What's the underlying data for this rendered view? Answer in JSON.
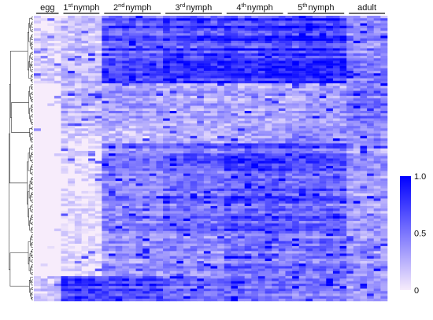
{
  "chart_data": {
    "type": "heatmap",
    "title": "",
    "xlabel": "",
    "ylabel": "",
    "row_count": 114,
    "value_range": [
      0,
      1
    ],
    "colorscale": {
      "low": "#f7ecfb",
      "high": "#0000ff"
    },
    "groups": [
      {
        "id": "egg",
        "base": "egg",
        "sup": "",
        "rest": "",
        "columns": 4
      },
      {
        "id": "n1",
        "base": "1",
        "sup": "st",
        "rest": "nymph",
        "columns": 6
      },
      {
        "id": "n2",
        "base": "2",
        "sup": "nd",
        "rest": "nymph",
        "columns": 9
      },
      {
        "id": "n3",
        "base": "3",
        "sup": "rd",
        "rest": "nymph",
        "columns": 9
      },
      {
        "id": "n4",
        "base": "4",
        "sup": "th",
        "rest": "nymph",
        "columns": 9
      },
      {
        "id": "n5",
        "base": "5",
        "sup": "th",
        "rest": "nymph",
        "columns": 9
      },
      {
        "id": "adult",
        "base": "adult",
        "sup": "",
        "rest": "",
        "columns": 6
      }
    ],
    "clusters": [
      {
        "rows": [
          0,
          26
        ],
        "level": [
          0.1,
          0.2,
          0.65,
          0.72,
          0.75,
          0.78,
          0.45
        ]
      },
      {
        "rows": [
          27,
          43
        ],
        "level": [
          0.02,
          0.25,
          0.35,
          0.3,
          0.3,
          0.35,
          0.55
        ]
      },
      {
        "rows": [
          44,
          50
        ],
        "level": [
          0.02,
          0.1,
          0.2,
          0.25,
          0.3,
          0.4,
          0.4
        ]
      },
      {
        "rows": [
          51,
          86
        ],
        "level": [
          0.0,
          0.05,
          0.45,
          0.55,
          0.65,
          0.6,
          0.35
        ]
      },
      {
        "rows": [
          87,
          103
        ],
        "level": [
          0.0,
          0.05,
          0.4,
          0.45,
          0.55,
          0.55,
          0.4
        ]
      },
      {
        "rows": [
          104,
          113
        ],
        "level": [
          0.15,
          0.75,
          0.7,
          0.55,
          0.55,
          0.5,
          0.35
        ]
      }
    ],
    "colorbar": {
      "ticks": [
        {
          "value": 1.0,
          "label": "1.0"
        },
        {
          "value": 0.5,
          "label": "0.5"
        },
        {
          "value": 0.0,
          "label": "0"
        }
      ]
    }
  }
}
